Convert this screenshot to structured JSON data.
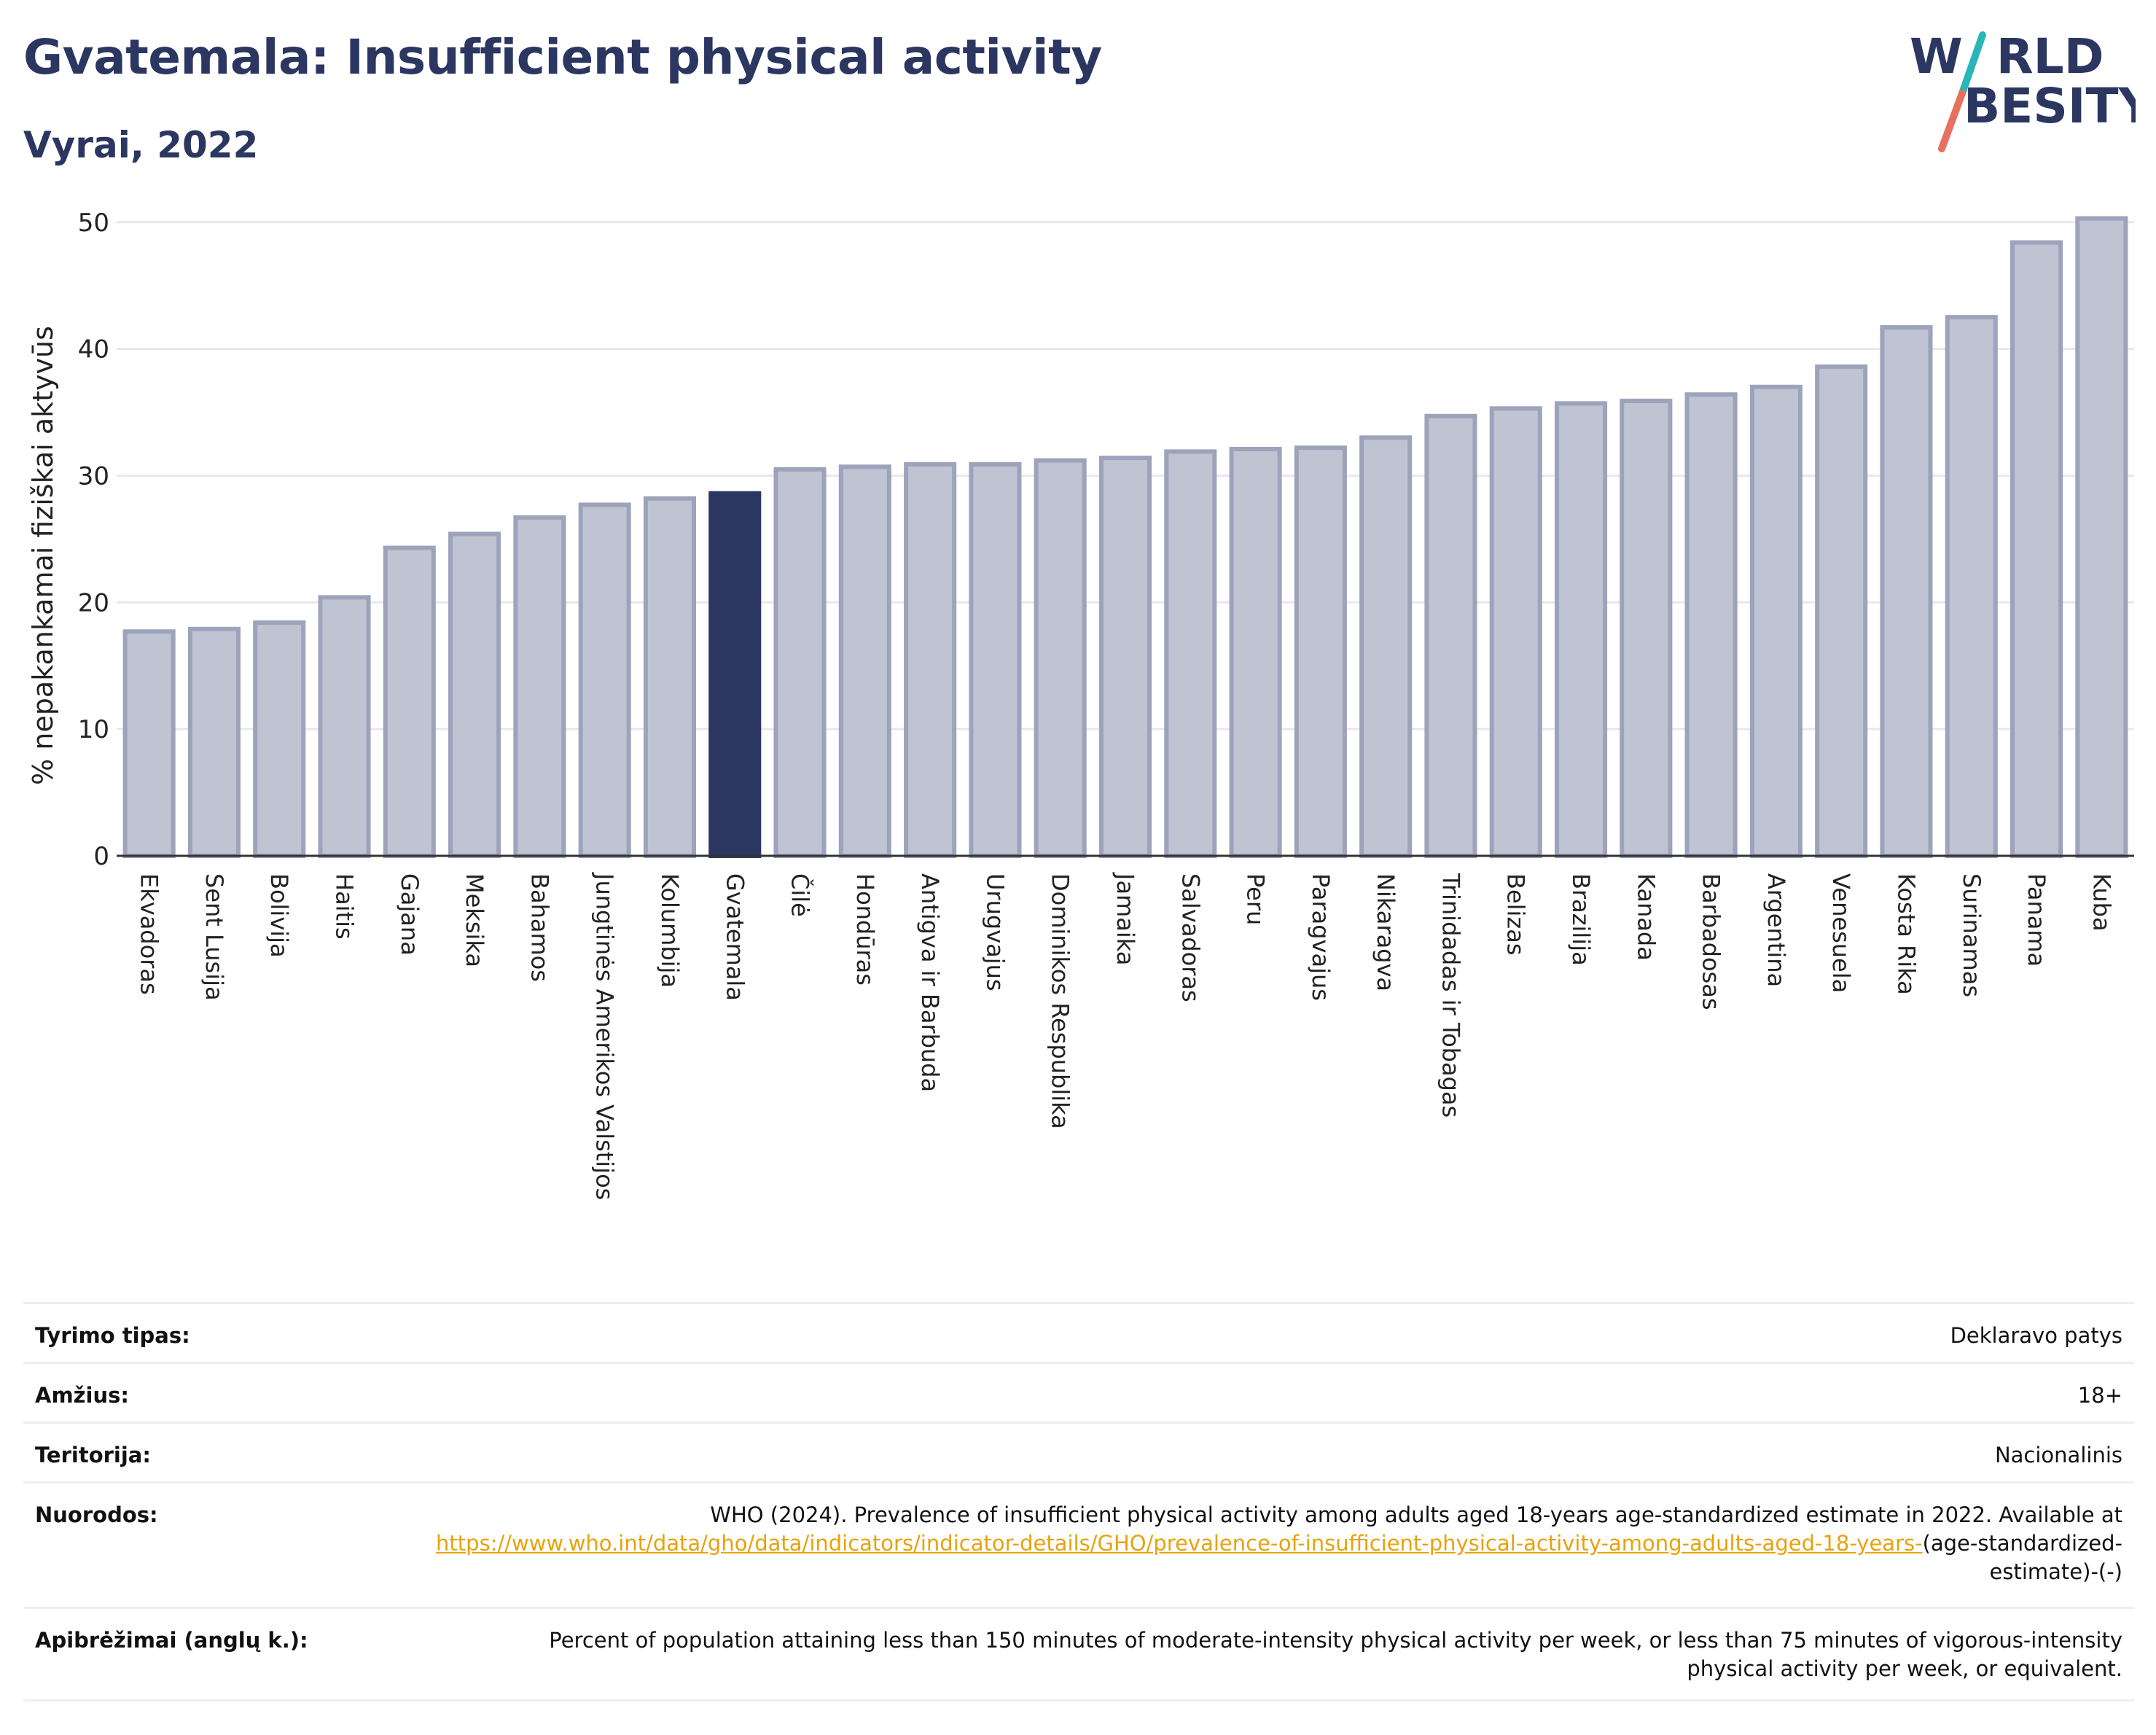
{
  "title": "Gvatemala: Insufficient physical activity",
  "subtitle": "Vyrai, 2022",
  "logo": {
    "line1": "W",
    "line1_rest": "RLD",
    "line2_rest": "BESITY",
    "slash_color_top": "#29b6b8",
    "slash_color_bottom": "#e8705f"
  },
  "chart_data": {
    "type": "bar",
    "title": "Gvatemala: Insufficient physical activity",
    "subtitle": "Vyrai, 2022",
    "xlabel": "",
    "ylabel": "% nepakankamai fiziškai aktyvūs",
    "ylim": [
      0,
      52
    ],
    "yticks": [
      0,
      10,
      20,
      30,
      40,
      50
    ],
    "grid": true,
    "highlight": "Gvatemala",
    "colors": {
      "bar": "#bfc3d2",
      "bar_edge": "#9da3bb",
      "highlight": "#2b3661",
      "axis": "#333333",
      "grid": "#e6e8ef"
    },
    "categories": [
      "Ekvadoras",
      "Sent Lusija",
      "Bolivija",
      "Haitis",
      "Gajana",
      "Meksika",
      "Bahamos",
      "Jungtinės Amerikos Valstijos",
      "Kolumbija",
      "Gvatemala",
      "Čilė",
      "Hondūras",
      "Antigva ir Barbuda",
      "Urugvajus",
      "Dominikos Respublika",
      "Jamaika",
      "Salvadoras",
      "Peru",
      "Paragvajus",
      "Nikaragva",
      "Trinidadas ir Tobagas",
      "Belizas",
      "Brazilija",
      "Kanada",
      "Barbadosas",
      "Argentina",
      "Venesuela",
      "Kosta Rika",
      "Surinamas",
      "Panama",
      "Kuba"
    ],
    "values": [
      17.7,
      17.9,
      18.4,
      20.4,
      24.3,
      25.4,
      26.7,
      27.7,
      28.2,
      28.6,
      30.5,
      30.7,
      30.9,
      30.9,
      31.2,
      31.4,
      31.9,
      32.1,
      32.2,
      33.0,
      34.7,
      35.3,
      35.7,
      35.9,
      36.4,
      37.0,
      38.6,
      41.7,
      42.5,
      48.4,
      50.3
    ]
  },
  "meta": {
    "survey_label": "Tyrimo tipas:",
    "survey_value": "Deklaravo patys",
    "age_label": "Amžius:",
    "age_value": "18+",
    "territory_label": "Teritorija:",
    "territory_value": "Nacionalinis",
    "refs_label": "Nuorodos:",
    "refs_text": "WHO (2024). Prevalence of insufficient physical activity among adults aged 18-years age-standardized estimate in 2022. Available at",
    "refs_link": "https://www.who.int/data/gho/data/indicators/indicator-details/GHO/prevalence-of-insufficient-physical-activity-among-adults-aged-18-years-",
    "refs_suffix": "(age-standardized-estimate)-(-)",
    "def_label": "Apibrėžimai (anglų k.):",
    "def_value": "Percent of population attaining less than 150 minutes of moderate-intensity physical activity per week, or less than 75 minutes of vigorous-intensity physical activity per week, or equivalent."
  }
}
